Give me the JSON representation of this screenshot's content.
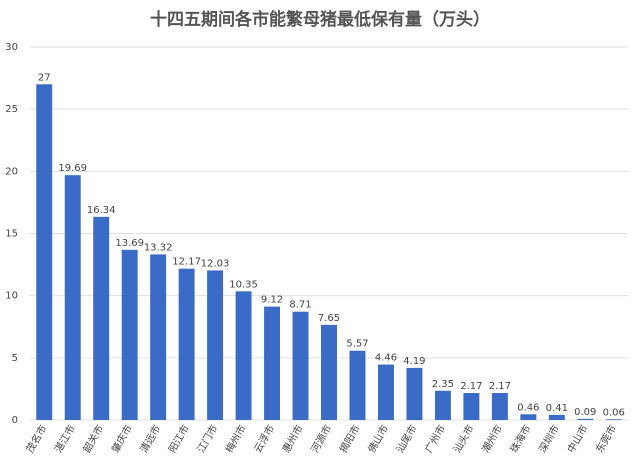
{
  "chart_data": {
    "type": "bar",
    "title": "十四五期间各市能繁母猪最低保有量（万头）",
    "categories": [
      "茂名市",
      "湛江市",
      "韶关市",
      "肇庆市",
      "清远市",
      "阳江市",
      "江门市",
      "梅州市",
      "云浮市",
      "惠州市",
      "河源市",
      "揭阳市",
      "佛山市",
      "汕尾市",
      "广州市",
      "汕头市",
      "潮州市",
      "珠海市",
      "深圳市",
      "中山市",
      "东莞市"
    ],
    "values": [
      27,
      19.69,
      16.34,
      13.69,
      13.32,
      12.17,
      12.03,
      10.35,
      9.12,
      8.71,
      7.65,
      5.57,
      4.46,
      4.19,
      2.35,
      2.17,
      2.17,
      0.46,
      0.41,
      0.09,
      0.06
    ],
    "color": "#3a6bc6",
    "ylim": [
      0,
      30
    ],
    "yticks": [
      0,
      5,
      10,
      15,
      20,
      25,
      30
    ],
    "grid": true
  }
}
